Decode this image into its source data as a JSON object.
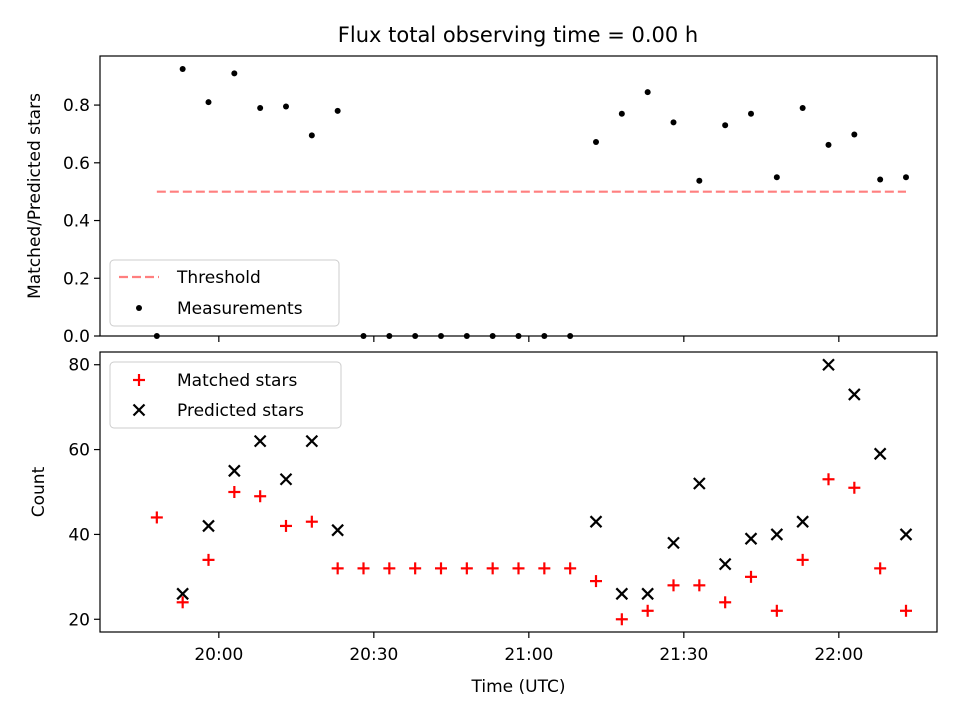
{
  "figure": {
    "title": "Flux total observing time = 0.00 h"
  },
  "chart_data": [
    {
      "type": "scatter",
      "ylabel": "Matched/Predicted stars",
      "ylim": [
        0,
        0.97
      ],
      "yticks": [
        "0.0",
        "0.2",
        "0.4",
        "0.6",
        "0.8"
      ],
      "legend_position": "lower-left",
      "threshold": {
        "name": "Threshold",
        "value": 0.5,
        "color": "#ff7f7f",
        "x_range": [
          "19:48",
          "22:13"
        ]
      },
      "series": [
        {
          "name": "Measurements",
          "color": "#000000",
          "x": [
            "19:48",
            "19:53",
            "19:58",
            "20:03",
            "20:08",
            "20:13",
            "20:18",
            "20:23",
            "20:28",
            "20:33",
            "20:38",
            "20:43",
            "20:48",
            "20:53",
            "20:58",
            "21:03",
            "21:08",
            "21:13",
            "21:18",
            "21:23",
            "21:28",
            "21:33",
            "21:38",
            "21:43",
            "21:48",
            "21:53",
            "21:58",
            "22:03",
            "22:08",
            "22:13"
          ],
          "y": [
            0.0,
            0.925,
            0.81,
            0.91,
            0.79,
            0.795,
            0.695,
            0.78,
            0.0,
            0.0,
            0.0,
            0.0,
            0.0,
            0.0,
            0.0,
            0.0,
            0.0,
            0.672,
            0.77,
            0.845,
            0.74,
            0.538,
            0.73,
            0.77,
            0.55,
            0.79,
            0.662,
            0.698,
            0.542,
            0.55
          ]
        }
      ]
    },
    {
      "type": "scatter",
      "xlabel": "Time (UTC)",
      "ylabel": "Count",
      "ylim": [
        17,
        83
      ],
      "yticks": [
        "20",
        "40",
        "60",
        "80"
      ],
      "xticks": [
        "20:00",
        "20:30",
        "21:00",
        "21:30",
        "22:00"
      ],
      "legend_position": "top-left",
      "series": [
        {
          "name": "Matched stars",
          "color": "#ff0000",
          "marker": "+",
          "x": [
            "19:48",
            "19:53",
            "19:58",
            "20:03",
            "20:08",
            "20:13",
            "20:18",
            "20:23",
            "20:28",
            "20:33",
            "20:38",
            "20:43",
            "20:48",
            "20:53",
            "20:58",
            "21:03",
            "21:08",
            "21:13",
            "21:18",
            "21:23",
            "21:28",
            "21:33",
            "21:38",
            "21:43",
            "21:48",
            "21:53",
            "21:58",
            "22:03",
            "22:08",
            "22:13"
          ],
          "y": [
            44,
            24,
            34,
            50,
            49,
            42,
            43,
            32,
            32,
            32,
            32,
            32,
            32,
            32,
            32,
            32,
            32,
            29,
            20,
            22,
            28,
            28,
            24,
            30,
            22,
            34,
            53,
            51,
            32,
            22
          ]
        },
        {
          "name": "Predicted stars",
          "color": "#000000",
          "marker": "x",
          "x": [
            "19:53",
            "19:58",
            "20:03",
            "20:08",
            "20:13",
            "20:18",
            "20:23",
            "21:13",
            "21:18",
            "21:23",
            "21:28",
            "21:33",
            "21:38",
            "21:43",
            "21:48",
            "21:53",
            "21:58",
            "22:03",
            "22:08",
            "22:13"
          ],
          "y": [
            26,
            42,
            55,
            62,
            53,
            62,
            41,
            43,
            26,
            26,
            38,
            52,
            33,
            39,
            40,
            43,
            80,
            73,
            59,
            40
          ]
        }
      ]
    }
  ]
}
